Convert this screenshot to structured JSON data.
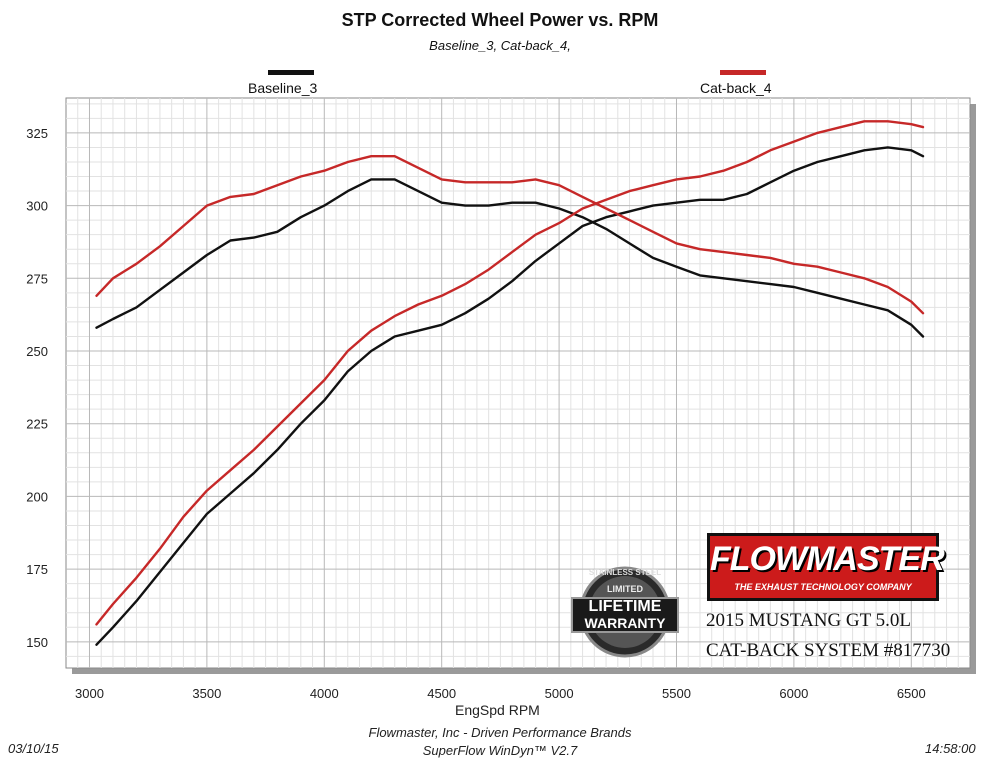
{
  "chart_data": {
    "type": "line",
    "title": "STP Corrected Wheel Power vs. RPM",
    "subtitle": "Baseline_3, Cat-back_4,",
    "xlabel": "EngSpd  RPM",
    "ylabel": "",
    "xlim": [
      2900,
      6750
    ],
    "ylim": [
      141,
      337
    ],
    "xticks": [
      3000,
      3500,
      4000,
      4500,
      5000,
      5500,
      6000,
      6500
    ],
    "yticks": [
      150,
      175,
      200,
      225,
      250,
      275,
      300,
      325
    ],
    "grid": true,
    "legend_position": "top",
    "series": [
      {
        "name": "Baseline_3",
        "group": "A",
        "color": "#111111",
        "x": [
          3030,
          3100,
          3200,
          3300,
          3400,
          3500,
          3600,
          3700,
          3800,
          3900,
          4000,
          4100,
          4200,
          4300,
          4400,
          4500,
          4600,
          4700,
          4800,
          4900,
          5000,
          5100,
          5200,
          5300,
          5400,
          5500,
          5600,
          5700,
          5800,
          5900,
          6000,
          6100,
          6200,
          6300,
          6400,
          6500,
          6550
        ],
        "values": [
          258,
          261,
          265,
          271,
          277,
          283,
          288,
          289,
          291,
          296,
          300,
          305,
          309,
          309,
          305,
          301,
          300,
          300,
          301,
          301,
          299,
          296,
          292,
          287,
          282,
          279,
          276,
          275,
          274,
          273,
          272,
          270,
          268,
          266,
          264,
          259,
          255
        ]
      },
      {
        "name": "Baseline_3",
        "group": "B",
        "color": "#111111",
        "x": [
          3030,
          3100,
          3200,
          3300,
          3400,
          3500,
          3600,
          3700,
          3800,
          3900,
          4000,
          4100,
          4200,
          4300,
          4400,
          4500,
          4600,
          4700,
          4800,
          4900,
          5000,
          5100,
          5200,
          5300,
          5400,
          5500,
          5600,
          5700,
          5800,
          5900,
          6000,
          6100,
          6200,
          6300,
          6400,
          6500,
          6550
        ],
        "values": [
          149,
          155,
          164,
          174,
          184,
          194,
          201,
          208,
          216,
          225,
          233,
          243,
          250,
          255,
          257,
          259,
          263,
          268,
          274,
          281,
          287,
          293,
          296,
          298,
          300,
          301,
          302,
          302,
          304,
          308,
          312,
          315,
          317,
          319,
          320,
          319,
          317
        ]
      },
      {
        "name": "Cat-back_4",
        "group": "A",
        "color": "#c62828",
        "x": [
          3030,
          3100,
          3200,
          3300,
          3400,
          3500,
          3600,
          3700,
          3800,
          3900,
          4000,
          4100,
          4200,
          4300,
          4400,
          4500,
          4600,
          4700,
          4800,
          4900,
          5000,
          5100,
          5200,
          5300,
          5400,
          5500,
          5600,
          5700,
          5800,
          5900,
          6000,
          6100,
          6200,
          6300,
          6400,
          6500,
          6550
        ],
        "values": [
          269,
          275,
          280,
          286,
          293,
          300,
          303,
          304,
          307,
          310,
          312,
          315,
          317,
          317,
          313,
          309,
          308,
          308,
          308,
          309,
          307,
          303,
          299,
          295,
          291,
          287,
          285,
          284,
          283,
          282,
          280,
          279,
          277,
          275,
          272,
          267,
          263
        ]
      },
      {
        "name": "Cat-back_4",
        "group": "B",
        "color": "#c62828",
        "x": [
          3030,
          3100,
          3200,
          3300,
          3400,
          3500,
          3600,
          3700,
          3800,
          3900,
          4000,
          4100,
          4200,
          4300,
          4400,
          4500,
          4600,
          4700,
          4800,
          4900,
          5000,
          5100,
          5200,
          5300,
          5400,
          5500,
          5600,
          5700,
          5800,
          5900,
          6000,
          6100,
          6200,
          6300,
          6400,
          6500,
          6550
        ],
        "values": [
          156,
          163,
          172,
          182,
          193,
          202,
          209,
          216,
          224,
          232,
          240,
          250,
          257,
          262,
          266,
          269,
          273,
          278,
          284,
          290,
          294,
          299,
          302,
          305,
          307,
          309,
          310,
          312,
          315,
          319,
          322,
          325,
          327,
          329,
          329,
          328,
          327
        ]
      }
    ]
  },
  "legend": [
    {
      "label": "Baseline_3",
      "color": "#111111"
    },
    {
      "label": "Cat-back_4",
      "color": "#c62828"
    }
  ],
  "branding": {
    "logo_text": "FLOWMASTER",
    "logo_tagline": "THE EXHAUST TECHNOLOGY COMPANY",
    "product_line1": "2015 MUSTANG GT 5.0L",
    "product_line2": "CAT-BACK SYSTEM #817730",
    "badge_top": "STAINLESS STEEL",
    "badge_mid": "LIMITED",
    "badge_line1": "LIFETIME",
    "badge_line2": "WARRANTY"
  },
  "footer": {
    "date": "03/10/15",
    "time": "14:58:00",
    "company": "Flowmaster, Inc - Driven Performance Brands",
    "software": "SuperFlow WinDyn™ V2.7"
  }
}
